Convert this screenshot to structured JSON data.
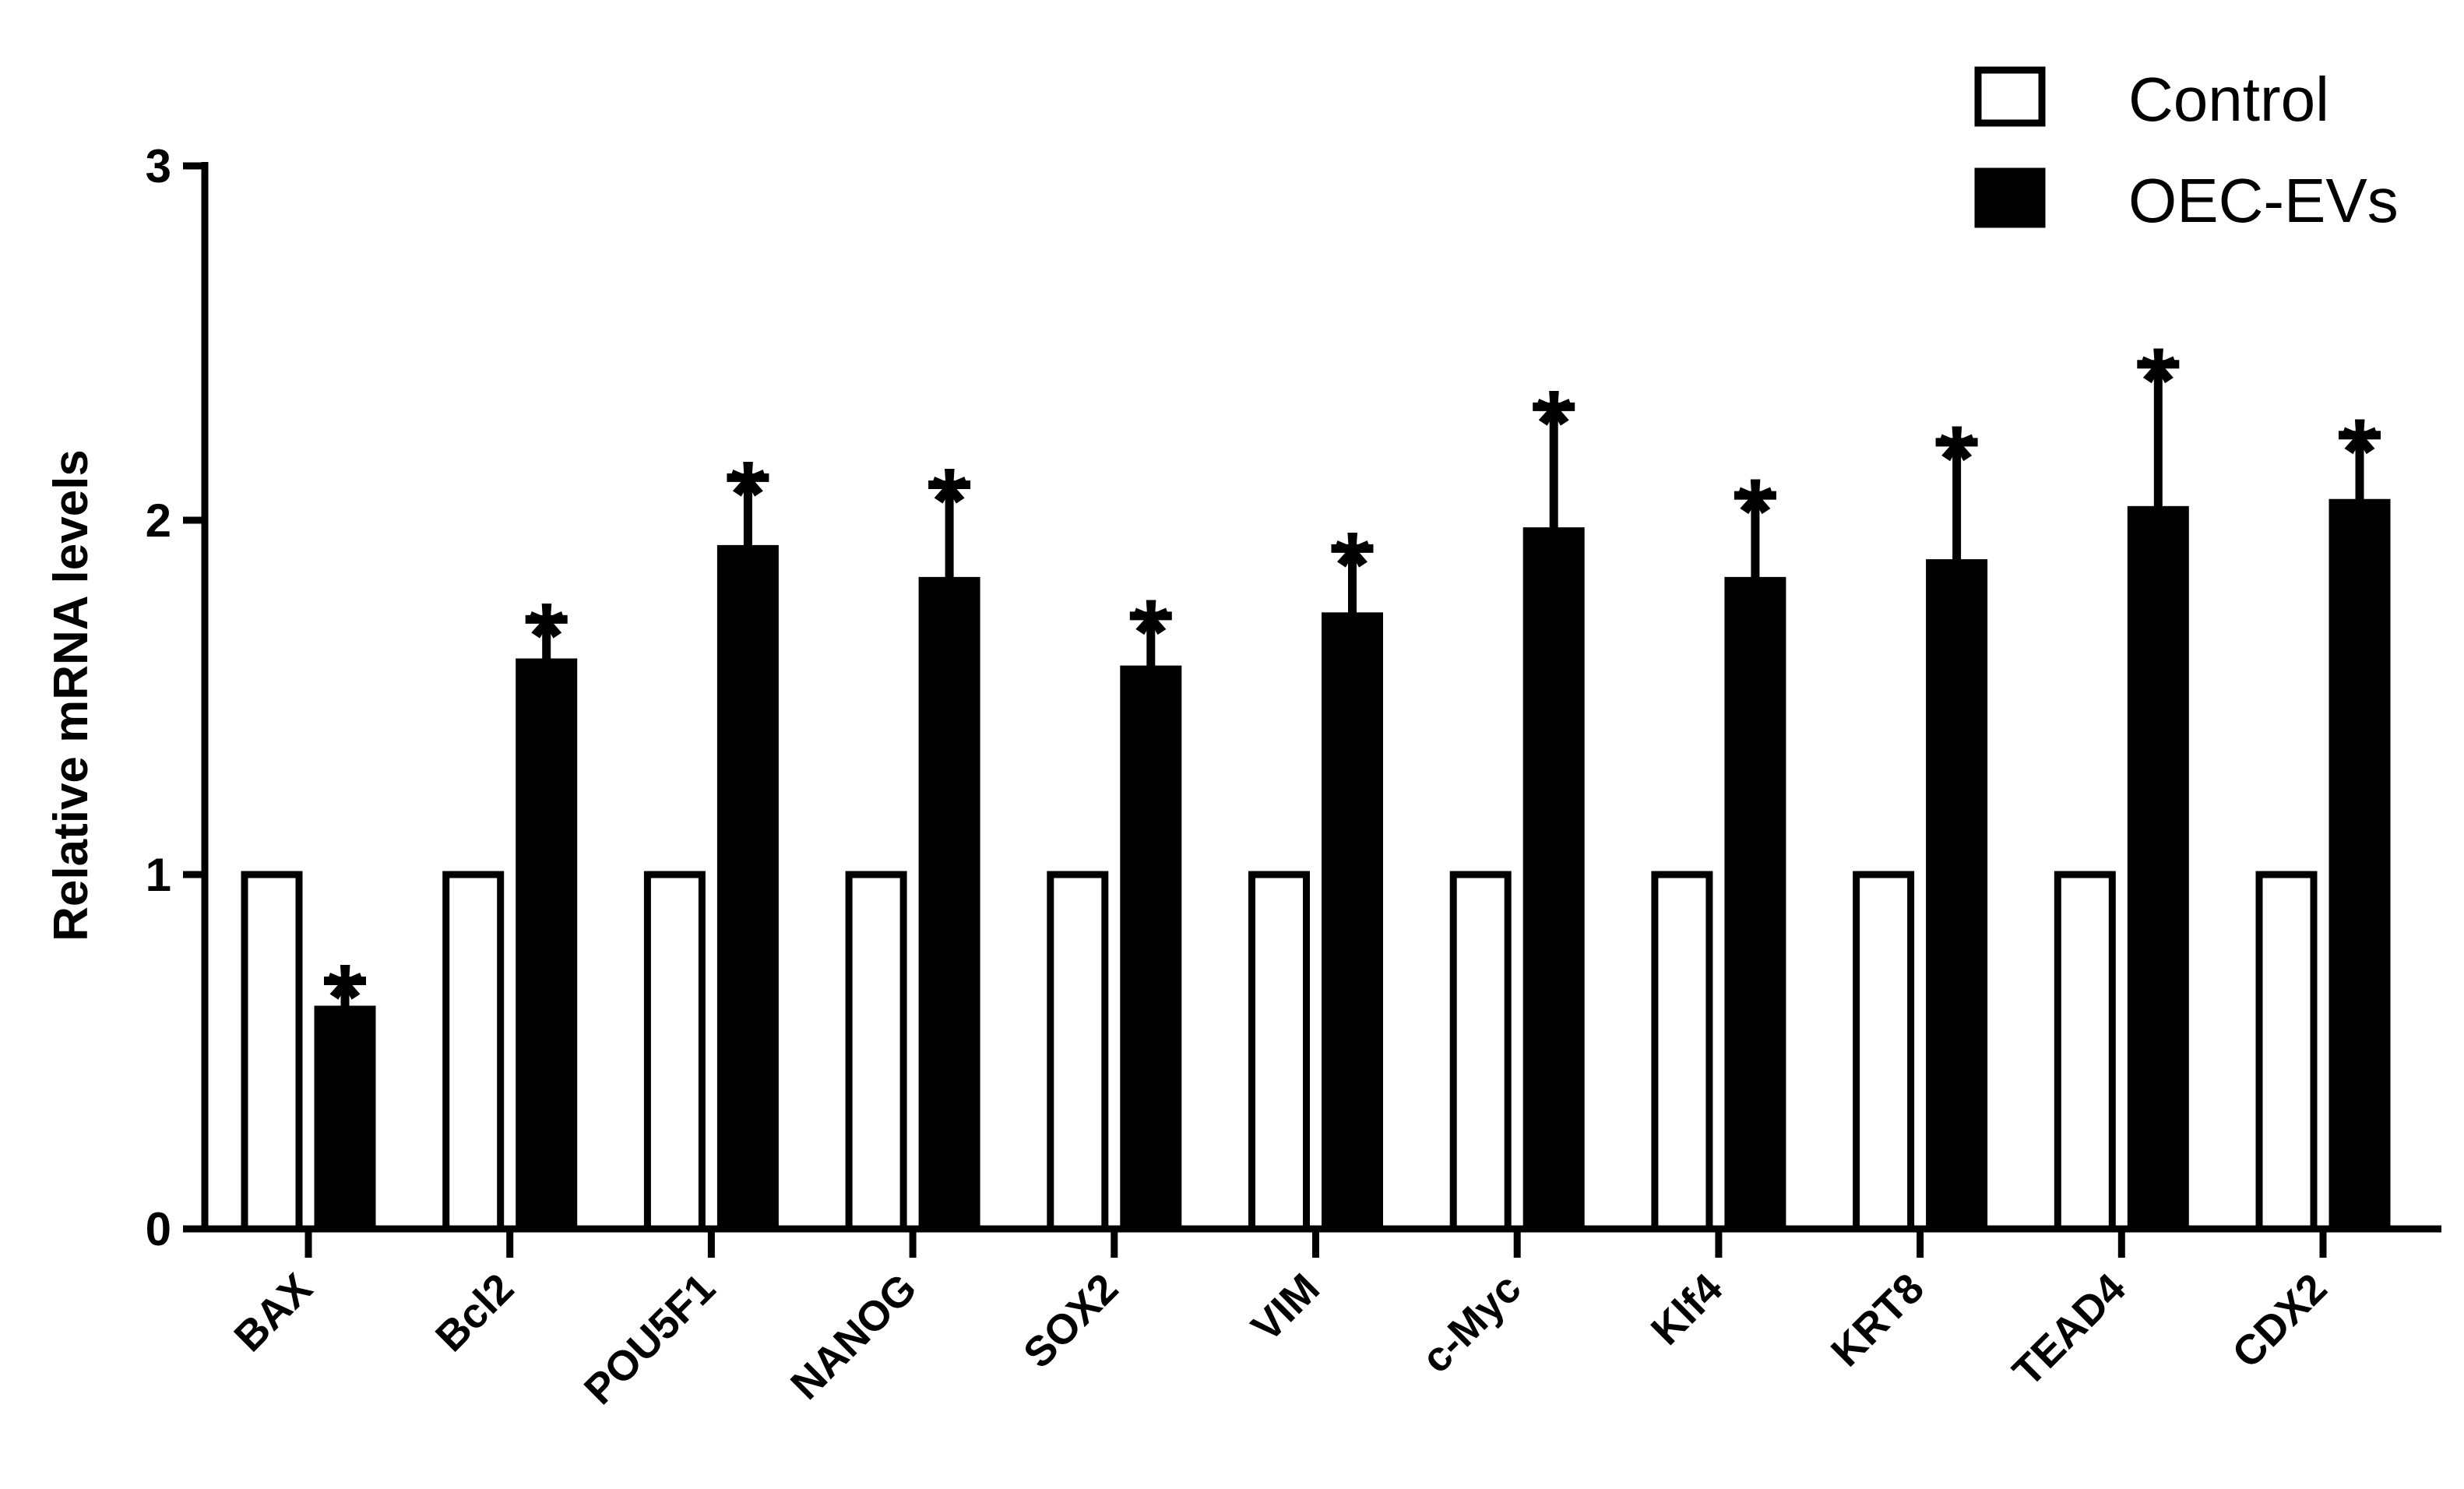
{
  "chart_data": {
    "type": "bar",
    "title": "",
    "xlabel": "",
    "ylabel": "Relative mRNA levels",
    "ylim": [
      0,
      3
    ],
    "yticks": [
      0,
      1,
      2,
      3
    ],
    "grid": false,
    "legend_position": "top-right",
    "categories": [
      "BAX",
      "Bcl2",
      "POU5F1",
      "NANOG",
      "SOX2",
      "VIM",
      "c-Myc",
      "Klf4",
      "KRT8",
      "TEAD4",
      "CDX2"
    ],
    "series": [
      {
        "name": "Control",
        "color": "#ffffff",
        "edge_color": "#000000",
        "values": [
          1,
          1,
          1,
          1,
          1,
          1,
          1,
          1,
          1,
          1,
          1
        ],
        "errors": [
          0,
          0,
          0,
          0,
          0,
          0,
          0,
          0,
          0,
          0,
          0
        ]
      },
      {
        "name": "OEC-EVs",
        "color": "#000000",
        "edge_color": "#000000",
        "values": [
          0.62,
          1.6,
          1.92,
          1.83,
          1.58,
          1.73,
          1.97,
          1.83,
          1.88,
          2.03,
          2.05
        ],
        "errors": [
          0.08,
          0.12,
          0.2,
          0.27,
          0.15,
          0.19,
          0.35,
          0.24,
          0.34,
          0.41,
          0.19
        ]
      }
    ],
    "significance_marker": "*",
    "significant": [
      true,
      true,
      true,
      true,
      true,
      true,
      true,
      true,
      true,
      true,
      true
    ]
  }
}
